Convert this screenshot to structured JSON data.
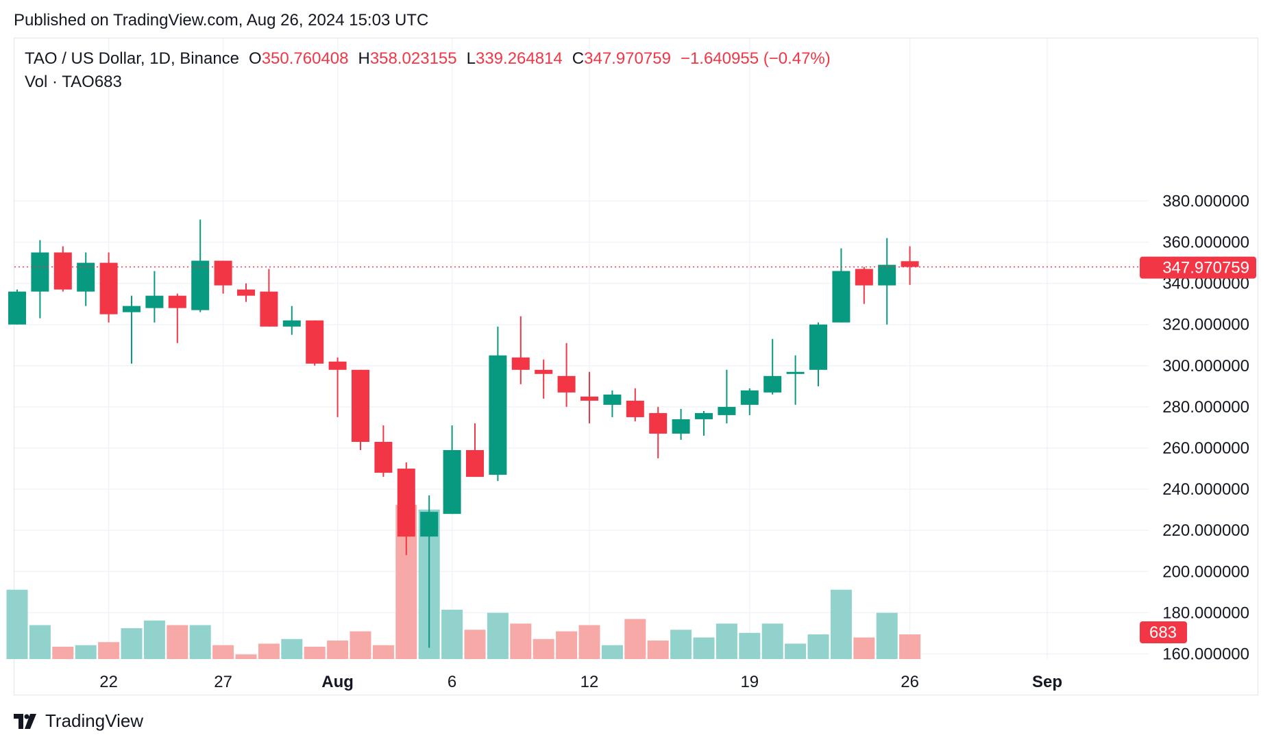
{
  "header": {
    "published": "Published on TradingView.com, Aug 26, 2024 15:03 UTC"
  },
  "legend": {
    "symbol": "TAO / US Dollar, 1D, Binance",
    "o_label": "O",
    "o_value": "350.760408",
    "h_label": "H",
    "h_value": "358.023155",
    "l_label": "L",
    "l_value": "339.264814",
    "c_label": "C",
    "c_value": "347.970759",
    "change": "−1.640955 (−0.47%)",
    "vol_label": "Vol · TAO",
    "vol_value": "683"
  },
  "brand": {
    "name": "TradingView"
  },
  "colors": {
    "up": "#089981",
    "down": "#f23645",
    "vol_up": "#92d2cc",
    "vol_down": "#f7a9a7",
    "grid": "#f0f3fa"
  },
  "chart_data": {
    "type": "candlestick",
    "price_axis": {
      "ticks": [
        "380.000000",
        "360.000000",
        "340.000000",
        "320.000000",
        "300.000000",
        "280.000000",
        "260.000000",
        "240.000000",
        "220.000000",
        "200.000000",
        "180.000000",
        "160.000000"
      ],
      "range": [
        146,
        388
      ]
    },
    "x_axis": {
      "ticks": [
        {
          "label": "22",
          "index": 4,
          "bold": false
        },
        {
          "label": "27",
          "index": 9,
          "bold": false
        },
        {
          "label": "Aug",
          "index": 14,
          "bold": true
        },
        {
          "label": "6",
          "index": 19,
          "bold": false
        },
        {
          "label": "12",
          "index": 25,
          "bold": false
        },
        {
          "label": "19",
          "index": 32,
          "bold": false
        },
        {
          "label": "26",
          "index": 39,
          "bold": false
        },
        {
          "label": "Sep",
          "index": 45,
          "bold": true
        }
      ]
    },
    "last_price_label": "347.970759",
    "last_price": 347.970759,
    "last_volume_label": "683",
    "candles": [
      {
        "o": 320,
        "h": 337,
        "l": 320,
        "c": 336
      },
      {
        "o": 336,
        "h": 361,
        "l": 323,
        "c": 355
      },
      {
        "o": 355,
        "h": 358,
        "l": 336,
        "c": 337
      },
      {
        "o": 336,
        "h": 355,
        "l": 329,
        "c": 350
      },
      {
        "o": 350,
        "h": 355,
        "l": 321,
        "c": 325
      },
      {
        "o": 326,
        "h": 334,
        "l": 301,
        "c": 329
      },
      {
        "o": 328,
        "h": 346,
        "l": 321,
        "c": 334
      },
      {
        "o": 334,
        "h": 335,
        "l": 311,
        "c": 328
      },
      {
        "o": 327,
        "h": 371,
        "l": 326,
        "c": 351
      },
      {
        "o": 351,
        "h": 351,
        "l": 335,
        "c": 339
      },
      {
        "o": 337,
        "h": 340,
        "l": 331,
        "c": 334
      },
      {
        "o": 336,
        "h": 347,
        "l": 319,
        "c": 319
      },
      {
        "o": 319,
        "h": 329,
        "l": 315,
        "c": 322
      },
      {
        "o": 322,
        "h": 322,
        "l": 300,
        "c": 301
      },
      {
        "o": 302,
        "h": 304,
        "l": 275,
        "c": 298
      },
      {
        "o": 298,
        "h": 298,
        "l": 259,
        "c": 263
      },
      {
        "o": 263,
        "h": 271,
        "l": 246,
        "c": 248
      },
      {
        "o": 250,
        "h": 253,
        "l": 208,
        "c": 217
      },
      {
        "o": 217,
        "h": 237,
        "l": 163,
        "c": 229
      },
      {
        "o": 228,
        "h": 271,
        "l": 228,
        "c": 259
      },
      {
        "o": 259,
        "h": 272,
        "l": 246,
        "c": 246
      },
      {
        "o": 247,
        "h": 319,
        "l": 244,
        "c": 305
      },
      {
        "o": 304,
        "h": 324,
        "l": 291,
        "c": 298
      },
      {
        "o": 298,
        "h": 303,
        "l": 284,
        "c": 296
      },
      {
        "o": 295,
        "h": 311,
        "l": 280,
        "c": 287
      },
      {
        "o": 285,
        "h": 297,
        "l": 272,
        "c": 283
      },
      {
        "o": 281,
        "h": 288,
        "l": 275,
        "c": 286
      },
      {
        "o": 283,
        "h": 289,
        "l": 273,
        "c": 275
      },
      {
        "o": 277,
        "h": 280,
        "l": 255,
        "c": 267
      },
      {
        "o": 267,
        "h": 279,
        "l": 264,
        "c": 274
      },
      {
        "o": 274,
        "h": 278,
        "l": 266,
        "c": 277
      },
      {
        "o": 276,
        "h": 298,
        "l": 272,
        "c": 280
      },
      {
        "o": 281,
        "h": 289,
        "l": 276,
        "c": 288
      },
      {
        "o": 287,
        "h": 313,
        "l": 286,
        "c": 295
      },
      {
        "o": 296,
        "h": 305,
        "l": 281,
        "c": 297
      },
      {
        "o": 298,
        "h": 321,
        "l": 290,
        "c": 320
      },
      {
        "o": 321,
        "h": 357,
        "l": 321,
        "c": 346
      },
      {
        "o": 347,
        "h": 348,
        "l": 330,
        "c": 339
      },
      {
        "o": 339,
        "h": 362,
        "l": 320,
        "c": 349
      },
      {
        "o": 350.760408,
        "h": 358.023155,
        "l": 339.264814,
        "c": 347.970759
      }
    ],
    "volume": [
      {
        "v": 0.45,
        "up": true
      },
      {
        "v": 0.22,
        "up": true
      },
      {
        "v": 0.08,
        "up": false
      },
      {
        "v": 0.09,
        "up": true
      },
      {
        "v": 0.11,
        "up": false
      },
      {
        "v": 0.2,
        "up": true
      },
      {
        "v": 0.25,
        "up": true
      },
      {
        "v": 0.22,
        "up": false
      },
      {
        "v": 0.22,
        "up": true
      },
      {
        "v": 0.09,
        "up": false
      },
      {
        "v": 0.03,
        "up": false
      },
      {
        "v": 0.1,
        "up": false
      },
      {
        "v": 0.13,
        "up": true
      },
      {
        "v": 0.08,
        "up": false
      },
      {
        "v": 0.12,
        "up": false
      },
      {
        "v": 0.18,
        "up": false
      },
      {
        "v": 0.09,
        "up": false
      },
      {
        "v": 1.0,
        "up": false
      },
      {
        "v": 0.97,
        "up": true
      },
      {
        "v": 0.32,
        "up": true
      },
      {
        "v": 0.19,
        "up": false
      },
      {
        "v": 0.3,
        "up": true
      },
      {
        "v": 0.23,
        "up": false
      },
      {
        "v": 0.13,
        "up": false
      },
      {
        "v": 0.18,
        "up": false
      },
      {
        "v": 0.22,
        "up": false
      },
      {
        "v": 0.09,
        "up": true
      },
      {
        "v": 0.26,
        "up": false
      },
      {
        "v": 0.12,
        "up": false
      },
      {
        "v": 0.19,
        "up": true
      },
      {
        "v": 0.14,
        "up": true
      },
      {
        "v": 0.23,
        "up": true
      },
      {
        "v": 0.17,
        "up": true
      },
      {
        "v": 0.23,
        "up": true
      },
      {
        "v": 0.1,
        "up": true
      },
      {
        "v": 0.16,
        "up": true
      },
      {
        "v": 0.45,
        "up": true
      },
      {
        "v": 0.14,
        "up": false
      },
      {
        "v": 0.3,
        "up": true
      },
      {
        "v": 0.16,
        "up": false
      }
    ]
  }
}
